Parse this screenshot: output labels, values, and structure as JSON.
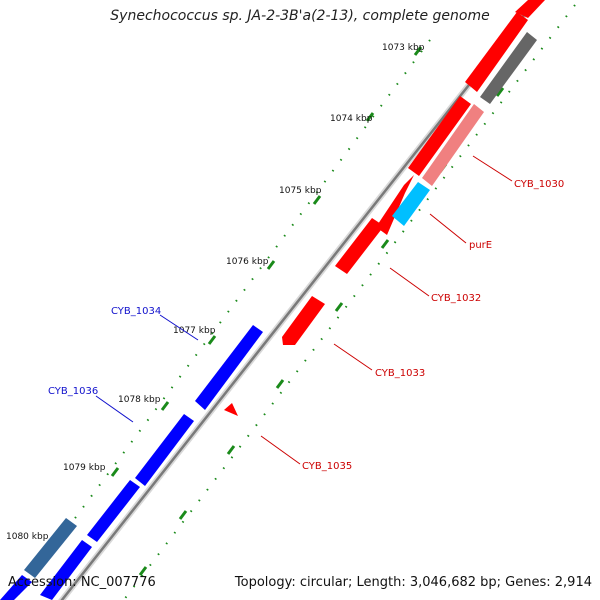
{
  "title": "Synechococcus sp. JA-2-3B'a(2-13), complete genome",
  "footer": {
    "accession": "Accession: NC_007776",
    "summary": "Topology: circular; Length: 3,046,682 bp; Genes: 2,914"
  },
  "kbp_ticks": [
    {
      "label": "1073 kbp",
      "kbp": 1073
    },
    {
      "label": "1074 kbp",
      "kbp": 1074
    },
    {
      "label": "1075 kbp",
      "kbp": 1075
    },
    {
      "label": "1076 kbp",
      "kbp": 1076
    },
    {
      "label": "1077 kbp",
      "kbp": 1077
    },
    {
      "label": "1078 kbp",
      "kbp": 1078
    },
    {
      "label": "1079 kbp",
      "kbp": 1079
    },
    {
      "label": "1080 kbp",
      "kbp": 1080
    }
  ],
  "gene_labels": [
    {
      "text": "CYB_1030",
      "color": "#cc0000"
    },
    {
      "text": "purE",
      "color": "#cc0000"
    },
    {
      "text": "CYB_1032",
      "color": "#cc0000"
    },
    {
      "text": "CYB_1033",
      "color": "#cc0000"
    },
    {
      "text": "CYB_1035",
      "color": "#cc0000"
    },
    {
      "text": "CYB_1034",
      "color": "#1010cc"
    },
    {
      "text": "CYB_1036",
      "color": "#1010cc"
    }
  ],
  "colors": {
    "forward_gene": "#ff0000",
    "forward_pseudo": "#f08080",
    "reverse_gene": "#0000ff",
    "reverse_pseudo": "#336699",
    "cyan_gene": "#00bfff",
    "grey_gene": "#666666",
    "backbone": "#888888",
    "tick_green": "#1a8a1a"
  }
}
